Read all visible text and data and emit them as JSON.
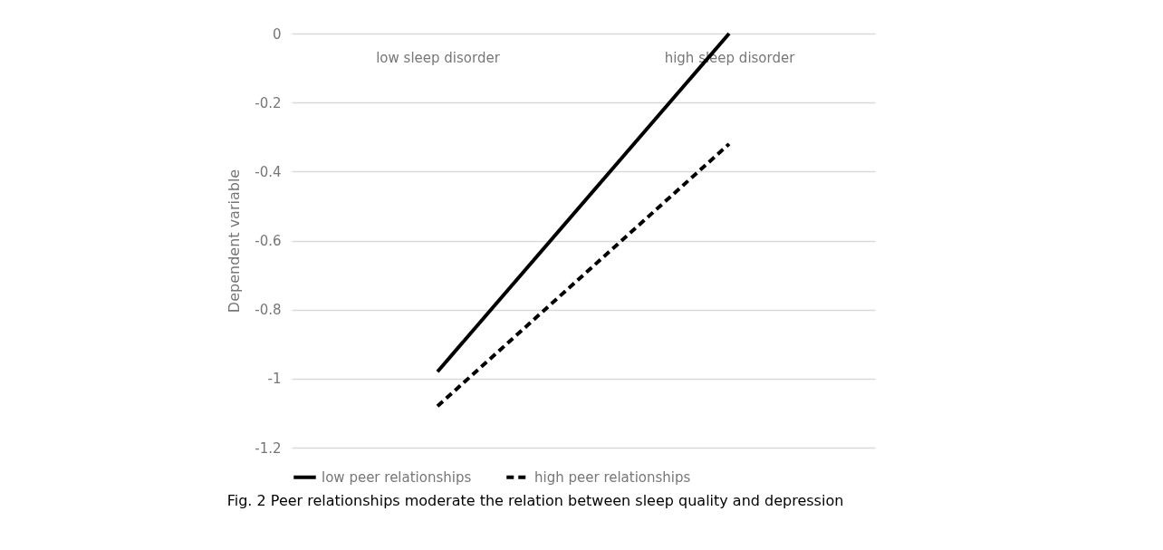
{
  "chart_data": {
    "type": "line",
    "ylabel": "Dependent variable",
    "categories": [
      "low sleep disorder",
      "high sleep disorder"
    ],
    "series": [
      {
        "name": "low peer relationships",
        "color": "#000000",
        "line_style": "solid",
        "values": [
          -0.98,
          0.0
        ]
      },
      {
        "name": "high peer relationships",
        "color": "#000000",
        "line_style": "dashed",
        "values": [
          -1.08,
          -0.32
        ]
      }
    ],
    "ylim": [
      -1.2,
      0
    ],
    "yticks": [
      0,
      -0.2,
      -0.4,
      -0.6,
      -0.8,
      -1,
      -1.2
    ],
    "grid": "y",
    "legend": "bottom",
    "annotations": [
      "Fig. 2  Peer relationships moderate the relation between sleep quality and depression"
    ]
  }
}
